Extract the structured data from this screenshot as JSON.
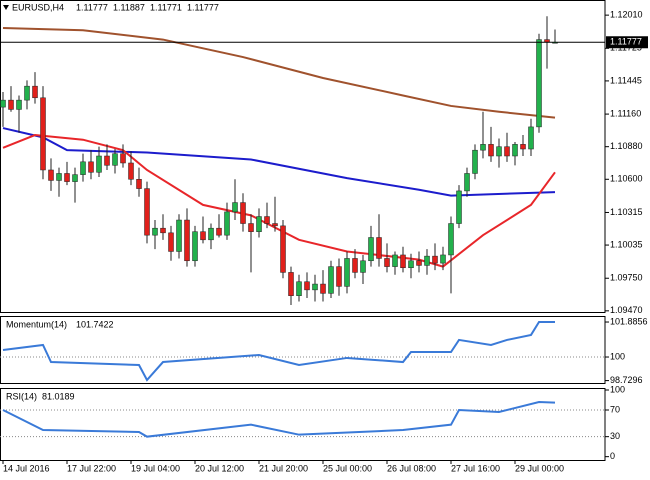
{
  "chart_data": [
    {
      "type": "candlestick",
      "title": "EURUSD,H4",
      "header_values": [
        1.11777,
        1.11887,
        1.11771,
        1.11777
      ],
      "categories": [
        "14 Jul 2016",
        null,
        null,
        null,
        null,
        null,
        null,
        null,
        "17 Jul 22:00",
        null,
        null,
        null,
        null,
        null,
        null,
        null,
        "19 Jul 04:00",
        null,
        null,
        null,
        null,
        null,
        null,
        null,
        "20 Jul 12:00",
        null,
        null,
        null,
        null,
        null,
        null,
        null,
        "21 Jul 20:00",
        null,
        null,
        null,
        null,
        null,
        null,
        null,
        "25 Jul 00:00",
        null,
        null,
        null,
        null,
        null,
        null,
        null,
        "26 Jul 08:00",
        null,
        null,
        null,
        null,
        null,
        null,
        null,
        "27 Jul 16:00",
        null,
        null,
        null,
        null,
        null,
        null,
        null,
        "29 Jul 00:00",
        null,
        null,
        null,
        null,
        null
      ],
      "open": [
        1.1122,
        1.1128,
        1.112,
        1.1128,
        1.114,
        1.113,
        1.1068,
        1.1059,
        1.1065,
        1.1058,
        1.1064,
        1.1075,
        1.1066,
        1.108,
        1.1072,
        1.1082,
        1.1074,
        1.106,
        1.1052,
        1.1012,
        1.1018,
        1.1014,
        1.0998,
        1.1025,
        1.099,
        1.1015,
        1.1008,
        1.1018,
        1.1012,
        1.1032,
        1.104,
        1.1022,
        1.1015,
        1.1028,
        1.1022,
        1.102,
        1.098,
        1.096,
        1.0972,
        1.0965,
        1.097,
        1.0962,
        1.0985,
        1.0968,
        1.0992,
        1.098,
        1.099,
        1.101,
        1.0992,
        1.0985,
        1.0995,
        1.0984,
        1.099,
        1.0986,
        1.0994,
        1.0988,
        1.0995,
        1.1022,
        1.105,
        1.1065,
        1.1085,
        1.109,
        1.108,
        1.1088,
        1.108,
        1.109,
        1.1086,
        1.1105,
        1.118,
        1.11777
      ],
      "high": [
        1.1135,
        1.114,
        1.1132,
        1.1145,
        1.1152,
        1.114,
        1.1078,
        1.107,
        1.1075,
        1.107,
        1.1082,
        1.1085,
        1.1088,
        1.109,
        1.1086,
        1.109,
        1.1084,
        1.107,
        1.1058,
        1.1025,
        1.103,
        1.102,
        1.103,
        1.1035,
        1.102,
        1.1028,
        1.1022,
        1.103,
        1.104,
        1.106,
        1.1048,
        1.103,
        1.1035,
        1.104,
        1.1045,
        1.1025,
        1.0985,
        1.0978,
        1.098,
        1.0978,
        1.0982,
        1.099,
        1.0992,
        1.0998,
        1.1,
        1.0995,
        1.102,
        1.103,
        1.1005,
        1.0998,
        1.1002,
        1.0996,
        1.0998,
        1.1,
        1.1005,
        1.1002,
        1.1028,
        1.1055,
        1.107,
        1.109,
        1.1118,
        1.1105,
        1.1095,
        1.11,
        1.1092,
        1.1098,
        1.1112,
        1.1185,
        1.12,
        1.11887
      ],
      "low": [
        1.1105,
        1.1118,
        1.11,
        1.112,
        1.1125,
        1.106,
        1.105,
        1.1045,
        1.1055,
        1.104,
        1.1058,
        1.106,
        1.1062,
        1.1068,
        1.1065,
        1.107,
        1.1055,
        1.1045,
        1.1005,
        1.1,
        1.1008,
        1.099,
        1.0992,
        1.0985,
        1.0985,
        1.1005,
        1.1,
        1.101,
        1.1008,
        1.1025,
        1.1015,
        1.098,
        1.101,
        1.1018,
        1.1015,
        1.0975,
        1.0952,
        1.0955,
        1.0958,
        1.0955,
        1.0955,
        1.0958,
        1.096,
        1.0962,
        1.0975,
        1.097,
        1.0985,
        1.0985,
        1.098,
        1.0978,
        1.098,
        1.0975,
        1.098,
        1.0978,
        1.0982,
        1.0982,
        1.0962,
        1.1018,
        1.1045,
        1.106,
        1.1078,
        1.1075,
        1.107,
        1.1075,
        1.1072,
        1.108,
        1.108,
        1.11,
        1.1155,
        1.11771
      ],
      "close": [
        1.1128,
        1.112,
        1.1128,
        1.114,
        1.113,
        1.1068,
        1.1059,
        1.1065,
        1.1058,
        1.1064,
        1.1075,
        1.1066,
        1.108,
        1.1072,
        1.1082,
        1.1074,
        1.106,
        1.1052,
        1.1012,
        1.1018,
        1.1014,
        1.0998,
        1.1025,
        1.099,
        1.1015,
        1.1008,
        1.1018,
        1.1012,
        1.1032,
        1.104,
        1.1022,
        1.1015,
        1.1028,
        1.1022,
        1.102,
        1.098,
        1.096,
        1.0972,
        1.0965,
        1.097,
        1.0962,
        1.0985,
        1.0968,
        1.0992,
        1.098,
        1.099,
        1.101,
        1.0992,
        1.0985,
        1.0995,
        1.0984,
        1.099,
        1.0986,
        1.0994,
        1.0988,
        1.0995,
        1.1022,
        1.105,
        1.1065,
        1.1085,
        1.109,
        1.108,
        1.1088,
        1.108,
        1.109,
        1.1086,
        1.1105,
        1.118,
        1.11777,
        1.11777
      ],
      "up_color": "#22b14c",
      "down_color": "#e0201b",
      "wick_color": "#222222",
      "lines": [
        {
          "color": "#a0522d",
          "x": [
            0,
            10,
            20,
            30,
            40,
            50,
            56,
            62,
            69
          ],
          "values": [
            1.119,
            1.1188,
            1.118,
            1.1165,
            1.1147,
            1.1132,
            1.1123,
            1.1118,
            1.1113
          ]
        },
        {
          "color": "#1c1ccc",
          "x": [
            0,
            5,
            8,
            18,
            31,
            43,
            52,
            56,
            69
          ],
          "values": [
            1.1104,
            1.1096,
            1.1085,
            1.1083,
            1.1077,
            1.1061,
            1.1051,
            1.1046,
            1.1049
          ]
        },
        {
          "color": "#e8262a",
          "x": [
            0,
            4,
            10,
            15,
            18,
            25,
            31,
            37,
            43,
            52,
            55,
            60,
            66,
            69
          ],
          "values": [
            1.1087,
            1.1098,
            1.1094,
            1.1085,
            1.1068,
            1.1038,
            1.1029,
            1.1008,
            1.0998,
            1.0991,
            1.0985,
            1.1012,
            1.1038,
            1.1066
          ]
        }
      ],
      "current_price": 1.11777,
      "ylim": [
        1.0946,
        1.1214
      ],
      "yticks": [
        {
          "value": 1.1201,
          "label": "1.12010"
        },
        1.11725,
        1.11445,
        {
          "value": 1.1116,
          "label": "1.11160"
        },
        {
          "value": 1.1088,
          "label": "1.10880"
        },
        {
          "value": 1.106,
          "label": "1.10600"
        },
        1.10315,
        1.10035,
        {
          "value": 1.0975,
          "label": "1.09750"
        },
        {
          "value": 1.0947,
          "label": "1.09470"
        }
      ]
    },
    {
      "type": "line",
      "title": "Momentum(14)",
      "last_value": 101.7422,
      "color": "#3a7ad8",
      "x": [
        0,
        5,
        6,
        17,
        18,
        20,
        32,
        37,
        43,
        50,
        51,
        56,
        57,
        61,
        63,
        66,
        67,
        69
      ],
      "values": [
        100.38,
        100.65,
        99.73,
        99.57,
        98.76,
        99.73,
        100.11,
        99.57,
        99.95,
        99.73,
        100.27,
        100.27,
        100.92,
        100.65,
        100.92,
        101.19,
        101.89,
        101.89
      ],
      "ylim": [
        98.6,
        102.21
      ],
      "yticks": [
        101.8856,
        100,
        98.7296
      ],
      "levels": [
        100
      ]
    },
    {
      "type": "line",
      "title": "RSI(14)",
      "last_value": 81.0189,
      "color": "#3a7ad8",
      "x": [
        0,
        5,
        17,
        18,
        31,
        37,
        50,
        56,
        57,
        62,
        67,
        69
      ],
      "values": [
        70,
        40,
        37,
        30,
        48,
        33,
        40,
        48,
        70,
        67,
        82,
        81
      ],
      "ylim": [
        -5,
        103
      ],
      "yticks": [
        100,
        70,
        30,
        0
      ],
      "levels": [
        70,
        30
      ]
    }
  ]
}
